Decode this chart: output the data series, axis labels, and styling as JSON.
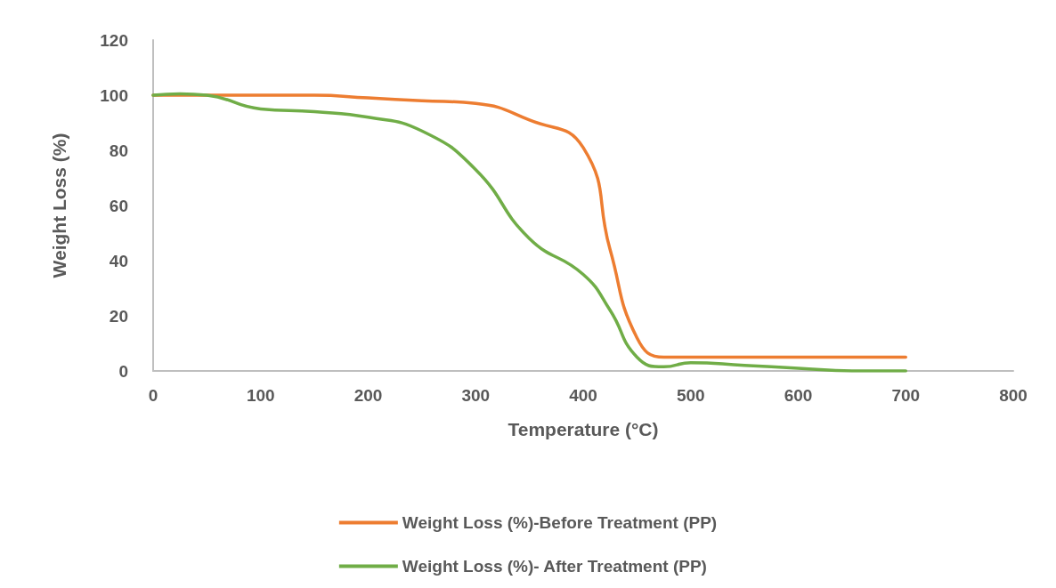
{
  "chart_data": {
    "type": "line",
    "xlabel": "Temperature (°C)",
    "ylabel": "Weight Loss (%)",
    "xlim": [
      0,
      800
    ],
    "xticks": [
      0,
      100,
      200,
      300,
      400,
      500,
      600,
      700,
      800
    ],
    "ylim": [
      0,
      120
    ],
    "yticks": [
      0,
      20,
      40,
      60,
      80,
      100,
      120
    ],
    "grid": false,
    "legend": "bottom",
    "marker": "none",
    "line_style": "solid",
    "series": [
      {
        "name": "Weight Loss (%)-Before Treatment (PP)",
        "color": "#ed7d31",
        "x": [
          0,
          50,
          100,
          150,
          200,
          250,
          300,
          350,
          400,
          425,
          450,
          475,
          500,
          550,
          600,
          650,
          700
        ],
        "values": [
          100,
          100,
          100,
          100,
          99,
          98,
          97,
          91,
          81,
          44,
          12,
          5,
          5,
          5,
          5,
          5,
          5
        ]
      },
      {
        "name": "Weight Loss (%)- After Treatment (PP)",
        "color": "#70ad47",
        "x": [
          0,
          25,
          50,
          100,
          150,
          200,
          250,
          300,
          350,
          400,
          425,
          450,
          475,
          500,
          550,
          600,
          650,
          700
        ],
        "values": [
          100,
          100.5,
          100,
          95,
          94,
          92,
          87,
          73,
          48,
          35,
          22,
          5,
          1.5,
          3,
          2,
          1,
          0,
          0
        ]
      }
    ]
  }
}
